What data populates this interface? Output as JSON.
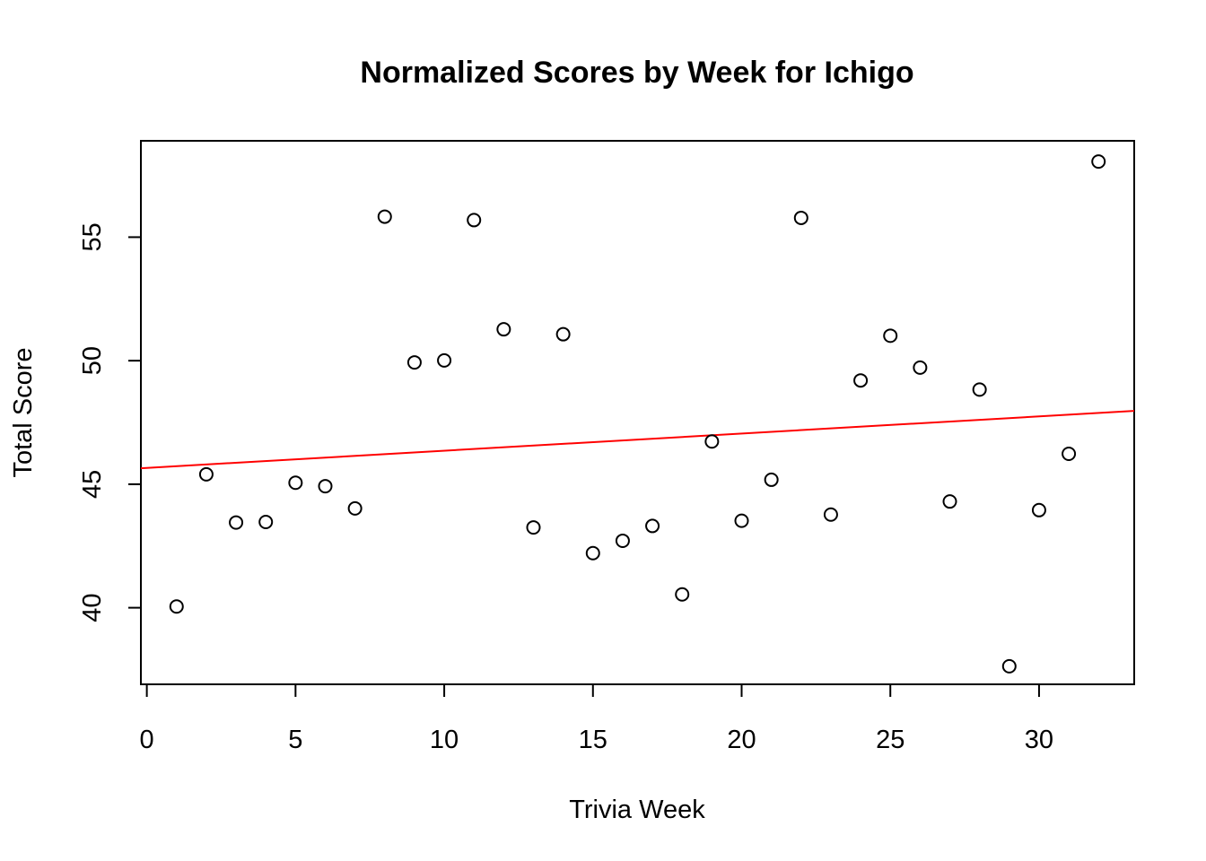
{
  "chart_data": {
    "type": "scatter",
    "title": "Normalized Scores by Week for Ichigo",
    "xlabel": "Trivia Week",
    "ylabel": "Total Score",
    "xlim": [
      -0.2,
      33.2
    ],
    "ylim": [
      36.9,
      58.9
    ],
    "xticks": [
      0,
      5,
      10,
      15,
      20,
      25,
      30
    ],
    "yticks": [
      40,
      45,
      50,
      55
    ],
    "grid": false,
    "legend": "none",
    "points": [
      {
        "x": 1,
        "y": 40.05
      },
      {
        "x": 2,
        "y": 45.4
      },
      {
        "x": 3,
        "y": 43.45
      },
      {
        "x": 4,
        "y": 43.47
      },
      {
        "x": 5,
        "y": 45.06
      },
      {
        "x": 6,
        "y": 44.92
      },
      {
        "x": 7,
        "y": 44.02
      },
      {
        "x": 8,
        "y": 55.83
      },
      {
        "x": 9,
        "y": 49.93
      },
      {
        "x": 10,
        "y": 50.01
      },
      {
        "x": 11,
        "y": 55.69
      },
      {
        "x": 12,
        "y": 51.27
      },
      {
        "x": 13,
        "y": 43.25
      },
      {
        "x": 14,
        "y": 51.07
      },
      {
        "x": 15,
        "y": 42.21
      },
      {
        "x": 16,
        "y": 42.71
      },
      {
        "x": 17,
        "y": 43.31
      },
      {
        "x": 18,
        "y": 40.54
      },
      {
        "x": 19,
        "y": 46.73
      },
      {
        "x": 20,
        "y": 43.52
      },
      {
        "x": 21,
        "y": 45.18
      },
      {
        "x": 22,
        "y": 55.78
      },
      {
        "x": 23,
        "y": 43.77
      },
      {
        "x": 24,
        "y": 49.2
      },
      {
        "x": 25,
        "y": 51.01
      },
      {
        "x": 26,
        "y": 49.72
      },
      {
        "x": 27,
        "y": 44.3
      },
      {
        "x": 28,
        "y": 48.83
      },
      {
        "x": 29,
        "y": 37.63
      },
      {
        "x": 30,
        "y": 43.95
      },
      {
        "x": 31,
        "y": 46.23
      },
      {
        "x": 32,
        "y": 58.06
      }
    ],
    "trend_line": {
      "intercept": 45.66,
      "slope": 0.0695
    },
    "colors": {
      "points": "#000000",
      "trend_line": "#ff0000",
      "frame": "#000000"
    }
  }
}
